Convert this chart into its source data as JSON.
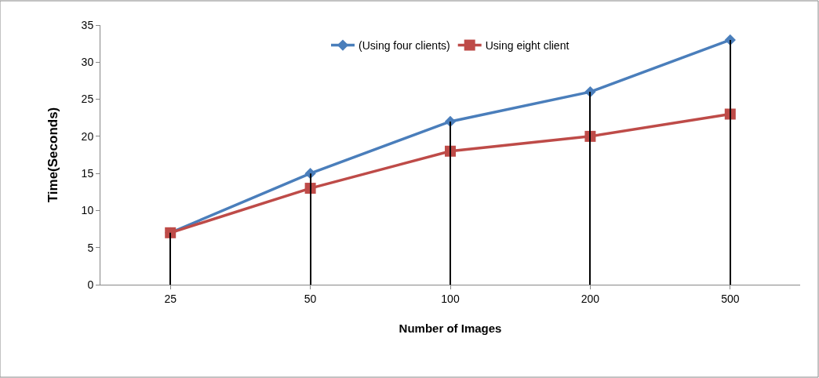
{
  "chart_data": {
    "type": "line",
    "xlabel": "Number of Images",
    "ylabel": "Time(Seconds)",
    "categories": [
      "25",
      "50",
      "100",
      "200",
      "500"
    ],
    "series": [
      {
        "name": "(Using four clients)",
        "color": "#4a7ebb",
        "values": [
          7,
          15,
          22,
          26,
          33
        ],
        "marker": "diamond"
      },
      {
        "name": "Using eight client",
        "color": "#be4b48",
        "values": [
          7,
          13,
          18,
          20,
          23
        ],
        "marker": "square"
      },
      {
        "type": "bar",
        "color": "#000000",
        "values": [
          7,
          15,
          22,
          26,
          33
        ]
      }
    ],
    "ylim": [
      0,
      35
    ],
    "yticks": [
      0,
      5,
      10,
      15,
      20,
      25,
      30,
      35
    ],
    "legend": "top",
    "line_style": "solid"
  }
}
